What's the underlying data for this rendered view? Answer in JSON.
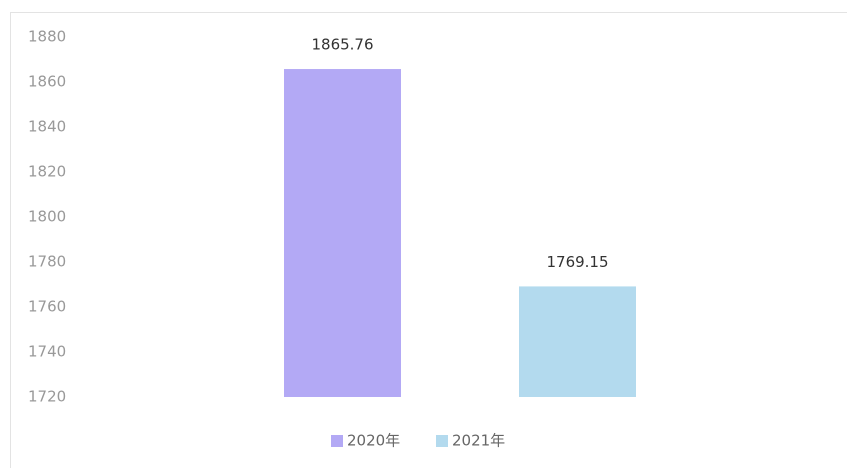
{
  "chart_data": {
    "type": "bar",
    "series": [
      {
        "name": "2020年",
        "color": "#b3a9f5",
        "values": [
          1865.76
        ]
      },
      {
        "name": "2021年",
        "color": "#b3daee",
        "values": [
          1769.15
        ]
      }
    ],
    "ylim": [
      1720,
      1880
    ],
    "yticks": [
      1720,
      1740,
      1760,
      1780,
      1800,
      1820,
      1840,
      1860,
      1880
    ],
    "grid": false,
    "legend": "bottom"
  }
}
